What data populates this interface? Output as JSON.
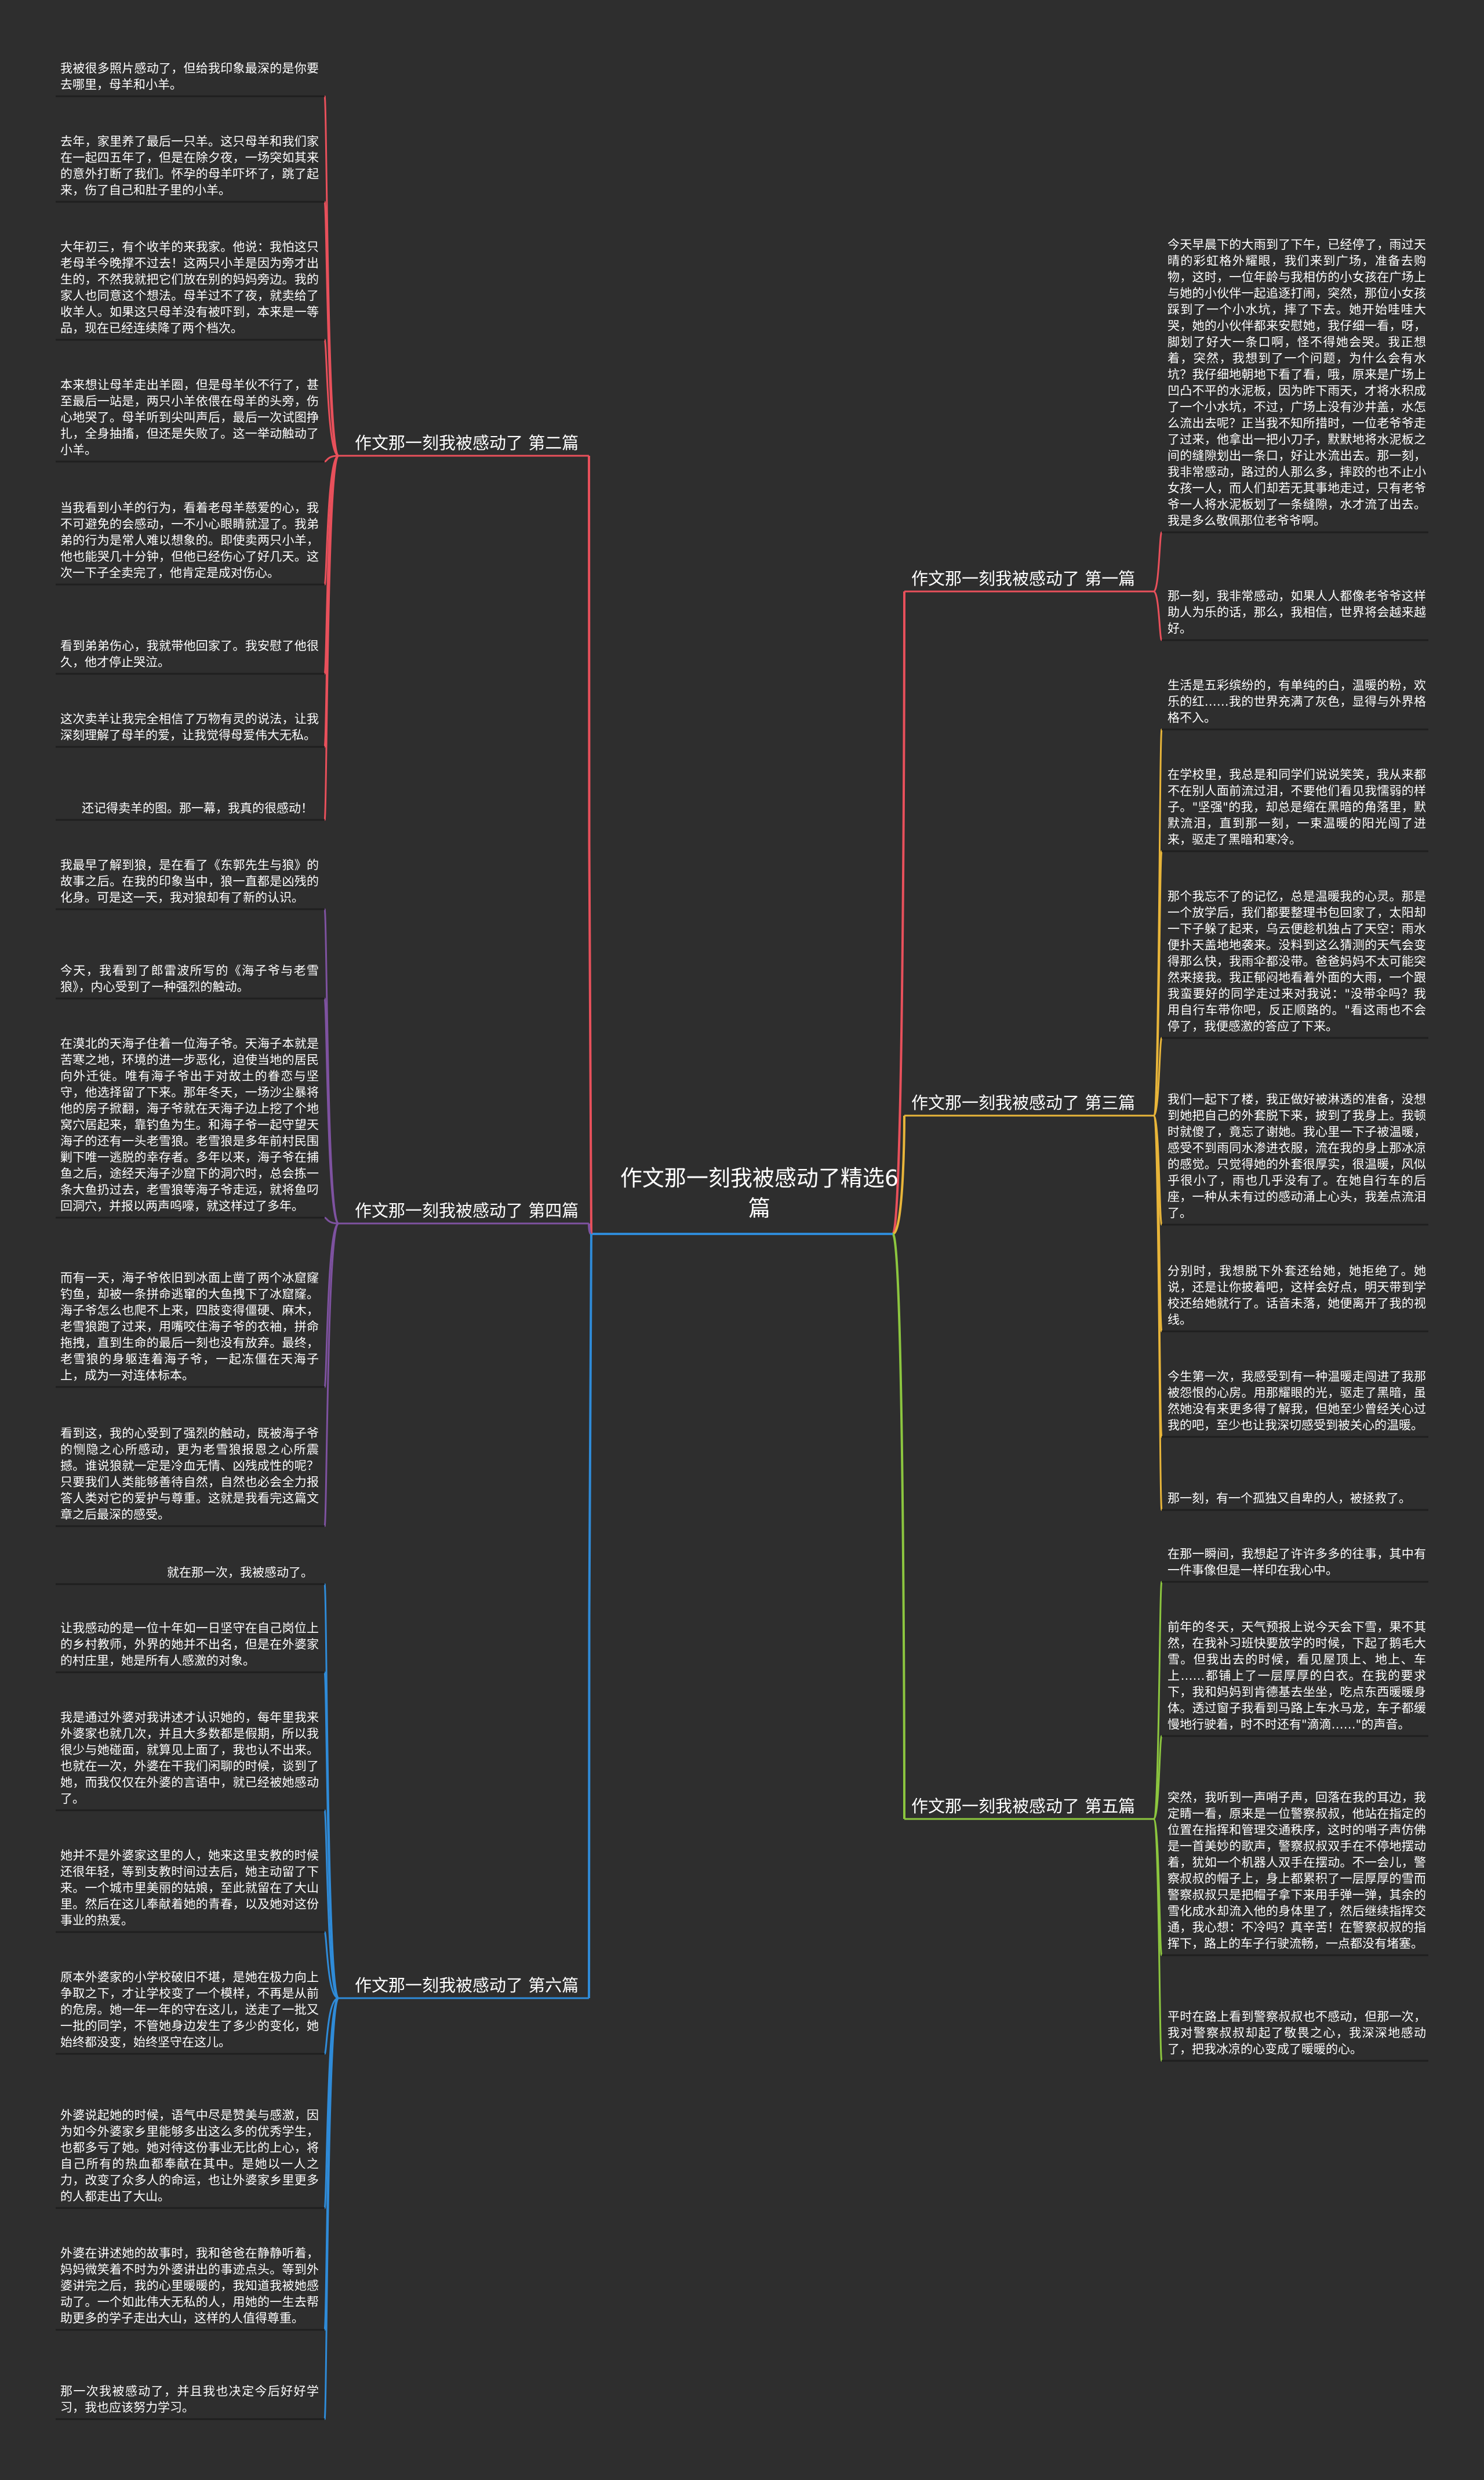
{
  "root": {
    "text": "作文那一刻我被感动了精选6篇"
  },
  "branches": [
    {
      "id": "b1",
      "side": "right",
      "color": "#e8505b",
      "title": "作文那一刻我被感动了 第一篇",
      "leaves": [
        "今天早晨下的大雨到了下午，已经停了，雨过天晴的彩虹格外耀眼，我们来到广场，准备去购物，这时，一位年龄与我相仿的小女孩在广场上与她的小伙伴一起追逐打闹，突然，那位小女孩踩到了一个小水坑，摔了下去。她开始哇哇大哭，她的小伙伴都来安慰她，我仔细一看，呀，脚划了好大一条口啊，怪不得她会哭。我正想着，突然，我想到了一个问题，为什么会有水坑？我仔细地朝地下看了看，哦，原来是广场上凹凸不平的水泥板，因为昨下雨天，才将水积成了一个小水坑，不过，广场上没有沙井盖，水怎么流出去呢？正当我不知所措时，一位老爷爷走了过来，他拿出一把小刀子，默默地将水泥板之间的缝隙划出一条口，好让水流出去。那一刻，我非常感动，路过的人那么多，摔跤的也不止小女孩一人，而人们却若无其事地走过，只有老爷爷一人将水泥板划了一条缝隙，水才流了出去。我是多么敬佩那位老爷爷啊。",
        "那一刻，我非常感动，如果人人都像老爷爷这样助人为乐的话，那么，我相信，世界将会越来越好。"
      ]
    },
    {
      "id": "b2",
      "side": "left",
      "color": "#e8505b",
      "title": "作文那一刻我被感动了 第二篇",
      "leaves": [
        "我被很多照片感动了，但给我印象最深的是你要去哪里，母羊和小羊。",
        "去年，家里养了最后一只羊。这只母羊和我们家在一起四五年了，但是在除夕夜，一场突如其来的意外打断了我们。怀孕的母羊吓坏了，跳了起来，伤了自己和肚子里的小羊。",
        "大年初三，有个收羊的来我家。他说：我怕这只老母羊今晚撑不过去！这两只小羊是因为旁才出生的，不然我就把它们放在别的妈妈旁边。我的家人也同意这个想法。母羊过不了夜，就卖给了收羊人。如果这只母羊没有被吓到，本来是一等品，现在已经连续降了两个档次。",
        "本来想让母羊走出羊圈，但是母羊伙不行了，甚至最后一站是，两只小羊依偎在母羊的头旁，伤心地哭了。母羊听到尖叫声后，最后一次试图挣扎，全身抽搐，但还是失败了。这一举动触动了小羊。",
        "当我看到小羊的行为，看着老母羊慈爱的心，我不可避免的会感动，一不小心眼睛就湿了。我弟弟的行为是常人难以想象的。即使卖两只小羊，他也能哭几十分钟，但他已经伤心了好几天。这次一下子全卖完了，他肯定是成对伤心。",
        "看到弟弟伤心，我就带他回家了。我安慰了他很久，他才停止哭泣。",
        "这次卖羊让我完全相信了万物有灵的说法，让我深刻理解了母羊的爱，让我觉得母爱伟大无私。",
        "还记得卖羊的图。那一幕，我真的很感动！"
      ]
    },
    {
      "id": "b3",
      "side": "right",
      "color": "#e8b53a",
      "title": "作文那一刻我被感动了 第三篇",
      "leaves": [
        "生活是五彩缤纷的，有单纯的白，温暖的粉，欢乐的红……我的世界充满了灰色，显得与外界格格不入。",
        "在学校里，我总是和同学们说说笑笑，我从来都不在别人面前流过泪，不要他们看见我懦弱的样子。\"坚强\"的我，却总是缩在黑暗的角落里，默默流泪，直到那一刻，一束温暖的阳光闯了进来，驱走了黑暗和寒冷。",
        "那个我忘不了的记忆，总是温暖我的心灵。那是一个放学后，我们都要整理书包回家了，太阳却一下子躲了起来，乌云便趁机独占了天空：雨水便扑天盖地地袭来。没料到这么猜测的天气会变得那么快，我雨伞都没带。爸爸妈妈不太可能突然来接我。我正郁闷地看着外面的大雨，一个跟我蛮要好的同学走过来对我说：\"没带伞吗？我用自行车带你吧，反正顺路的。\"看这雨也不会停了，我便感激的答应了下来。",
        "我们一起下了楼，我正做好被淋透的准备，没想到她把自己的外套脱下来，披到了我身上。我顿时就傻了，竟忘了谢她。我心里一下子被温暖，感受不到雨同水渗进衣服，流在我的身上那冰凉的感觉。只觉得她的外套很厚实，很温暖，风似乎很小了，雨也几乎没有了。在她自行车的后座，一种从未有过的感动涌上心头，我差点流泪了。",
        "分别时，我想脱下外套还给她，她拒绝了。她说，还是让你披着吧，这样会好点，明天带到学校还给她就行了。话音未落，她便离开了我的视线。",
        "今生第一次，我感受到有一种温暖走闯进了我那被怨恨的心房。用那耀眼的光，驱走了黑暗，虽然她没有来更多得了解我，但她至少曾经关心过我的吧，至少也让我深切感受到被关心的温暖。",
        "那一刻，有一个孤独又自卑的人，被拯救了。"
      ]
    },
    {
      "id": "b4",
      "side": "left",
      "color": "#7e52a0",
      "title": "作文那一刻我被感动了 第四篇",
      "leaves": [
        "我最早了解到狼，是在看了《东郭先生与狼》的故事之后。在我的印象当中，狼一直都是凶残的化身。可是这一天，我对狼却有了新的认识。",
        "今天，我看到了郎雷波所写的《海子爷与老雪狼》，内心受到了一种强烈的触动。",
        "在漠北的天海子住着一位海子爷。天海子本就是苦寒之地，环境的进一步恶化，迫使当地的居民向外迁徙。唯有海子爷出于对故土的眷恋与坚守，他选择留了下来。那年冬天，一场沙尘暴将他的房子掀翻，海子爷就在天海子边上挖了个地窝穴居起来，靠钓鱼为生。和海子爷一起守望天海子的还有一头老雪狼。老雪狼是多年前村民围剿下唯一逃脱的幸存者。多年以来，海子爷在捕鱼之后，途经天海子沙窟下的洞穴时，总会拣一条大鱼扔过去，老雪狼等海子爷走远，就将鱼叼回洞穴，并报以两声呜嚎，就这样过了多年。",
        "而有一天，海子爷依旧到冰面上凿了两个冰窟窿钓鱼，却被一条拼命逃窜的大鱼拽下了冰窟窿。海子爷怎么也爬不上来，四肢变得僵硬、麻木，老雪狼跑了过来，用嘴咬住海子爷的衣袖，拼命拖拽，直到生命的最后一刻也没有放弃。最终，老雪狼的身躯连着海子爷，一起冻僵在天海子上，成为一对连体标本。",
        "看到这，我的心受到了强烈的触动，既被海子爷的恻隐之心所感动，更为老雪狼报恩之心所震撼。谁说狼就一定是冷血无情、凶残成性的呢？只要我们人类能够善待自然，自然也必会全力报答人类对它的爱护与尊重。这就是我看完这篇文章之后最深的感受。"
      ]
    },
    {
      "id": "b5",
      "side": "right",
      "color": "#8cc63f",
      "title": "作文那一刻我被感动了 第五篇",
      "leaves": [
        "在那一瞬间，我想起了许许多多的往事，其中有一件事像但是一样印在我心中。",
        "前年的冬天，天气预报上说今天会下雪，果不其然，在我补习班快要放学的时候，下起了鹅毛大雪。但我出去的时候，看见屋顶上、地上、车上……都铺上了一层厚厚的白衣。在我的要求下，我和妈妈到肯德基去坐坐，吃点东西暖暖身体。透过窗子我看到马路上车水马龙，车子都缓慢地行驶着，时不时还有\"滴滴……\"的声音。",
        "突然，我听到一声哨子声，回落在我的耳边，我定睛一看，原来是一位警察叔叔，他站在指定的位置在指挥和管理交通秩序，这时的哨子声仿佛是一首美妙的歌声，警察叔叔双手在不停地摆动着，犹如一个机器人双手在摆动。不一会儿，警察叔叔的帽子上，身上都累积了一层厚厚的雪而警察叔叔只是把帽子拿下来用手弹一弹，其余的雪化成水却流入他的身体里了，然后继续指挥交通，我心想：不冷吗？真辛苦！在警察叔叔的指挥下，路上的车子行驶流畅，一点都没有堵塞。",
        "平时在路上看到警察叔叔也不感动，但那一次，我对警察叔叔却起了敬畏之心，我深深地感动了，把我冰凉的心变成了暖暖的心。"
      ]
    },
    {
      "id": "b6",
      "side": "left",
      "color": "#2f8bd8",
      "title": "作文那一刻我被感动了 第六篇",
      "leaves": [
        "就在那一次，我被感动了。",
        "让我感动的是一位十年如一日坚守在自己岗位上的乡村教师，外界的她并不出名，但是在外婆家的村庄里，她是所有人感激的对象。",
        "我是通过外婆对我讲述才认识她的，每年里我来外婆家也就几次，并且大多数都是假期，所以我很少与她碰面，就算见上面了，我也认不出来。也就在一次，外婆在干我们闲聊的时候，谈到了她，而我仅仅在外婆的言语中，就已经被她感动了。",
        "她并不是外婆家这里的人，她来这里支教的时候还很年轻，等到支教时间过去后，她主动留了下来。一个城市里美丽的姑娘，至此就留在了大山里。然后在这儿奉献着她的青春，以及她对这份事业的热爱。",
        "原本外婆家的小学校破旧不堪，是她在极力向上争取之下，才让学校变了一个模样，不再是从前的危房。她一年一年的守在这儿，送走了一批又一批的同学，不管她身边发生了多少的变化，她始终都没变，始终坚守在这儿。",
        "外婆说起她的时候，语气中尽是赞美与感激，因为如今外婆家乡里能够多出这么多的优秀学生，也都多亏了她。她对待这份事业无比的上心，将自己所有的热血都奉献在其中。是她以一人之力，改变了众多人的命运，也让外婆家乡里更多的人都走出了大山。",
        "外婆在讲述她的故事时，我和爸爸在静静听着，妈妈微笑着不时为外婆讲出的事迹点头。等到外婆讲完之后，我的心里暖暖的，我知道我被她感动了。一个如此伟大无私的人，用她的一生去帮助更多的学子走出大山，这样的人值得尊重。",
        "那一次我被感动了，并且我也决定今后好好学习，我也应该努力学习。"
      ]
    }
  ]
}
